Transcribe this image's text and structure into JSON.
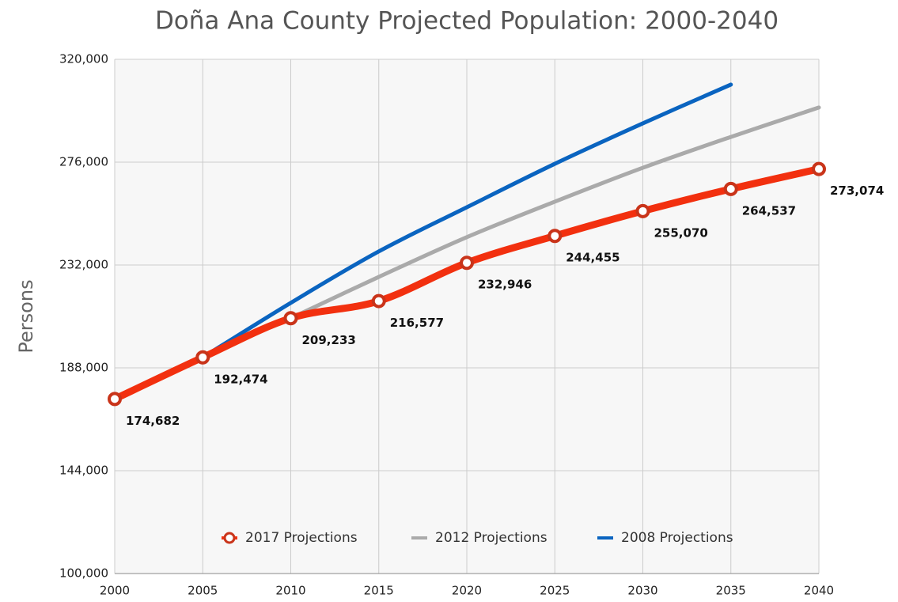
{
  "chart_data": {
    "type": "line",
    "title": "Doña Ana County Projected Population: 2000-2040",
    "y_label": "Persons",
    "x": [
      2000,
      2005,
      2010,
      2015,
      2020,
      2025,
      2030,
      2035,
      2040
    ],
    "xlim": [
      2000,
      2040
    ],
    "xticks": [
      2000,
      2005,
      2010,
      2015,
      2020,
      2025,
      2030,
      2035,
      2040
    ],
    "ylim": [
      100000,
      320000
    ],
    "yticks": [
      {
        "value": 100000,
        "label": "100,000"
      },
      {
        "value": 144000,
        "label": "144,000"
      },
      {
        "value": 188000,
        "label": "188,000"
      },
      {
        "value": 232000,
        "label": "232,000"
      },
      {
        "value": 276000,
        "label": "276,000"
      },
      {
        "value": 320000,
        "label": "320,000"
      }
    ],
    "grid": true,
    "legend": "bottom",
    "series": [
      {
        "name": "2017 Projections",
        "color": "#f2300f",
        "marker": "circle",
        "values": [
          174682,
          192474,
          209233,
          216577,
          232946,
          244455,
          255070,
          264537,
          273074
        ],
        "value_labels": [
          "174,682",
          "192,474",
          "209,233",
          "216,577",
          "232,946",
          "244,455",
          "255,070",
          "264,537",
          "273,074"
        ]
      },
      {
        "name": "2012 Projections",
        "color": "#aaaaaa",
        "values": [
          null,
          null,
          209233,
          226900,
          243900,
          259100,
          273600,
          286800,
          299400
        ]
      },
      {
        "name": "2008 Projections",
        "color": "#0a64c0",
        "values": [
          null,
          192474,
          215800,
          237800,
          256700,
          275300,
          292600,
          309200,
          null
        ]
      }
    ]
  }
}
